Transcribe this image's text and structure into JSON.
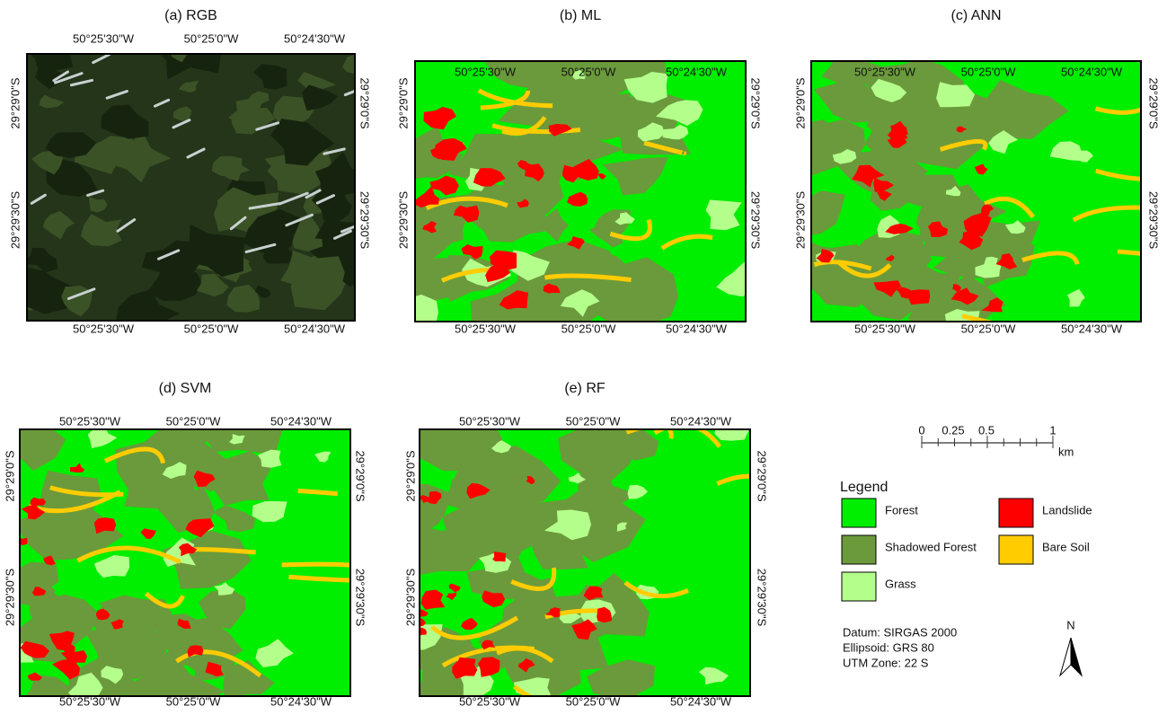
{
  "panels": [
    {
      "title": "(a) RGB"
    },
    {
      "title": "(b) ML"
    },
    {
      "title": "(c) ANN"
    },
    {
      "title": "(d) SVM"
    },
    {
      "title": "(e) RF"
    }
  ],
  "lon_labels": [
    "50°25'30\"W",
    "50°25'0\"W",
    "50°24'30\"W"
  ],
  "lat_labels": [
    "29°29'0\"S",
    "29°29'30\"S"
  ],
  "scale_bar": {
    "labels": [
      "0",
      "0.25",
      "0.5",
      "1"
    ],
    "unit": "km"
  },
  "legend": {
    "title": "Legend",
    "items": [
      {
        "name": "Forest",
        "color": "#00ee00"
      },
      {
        "name": "Shadowed Forest",
        "color": "#6b9a3c"
      },
      {
        "name": "Grass",
        "color": "#b4ff8c"
      },
      {
        "name": "Landslide",
        "color": "#ff0000"
      },
      {
        "name": "Bare Soil",
        "color": "#ffcc00"
      }
    ]
  },
  "datum": [
    "Datum: SIRGAS 2000",
    "Ellipsoid: GRS 80",
    "UTM Zone: 22 S"
  ],
  "north": "N"
}
